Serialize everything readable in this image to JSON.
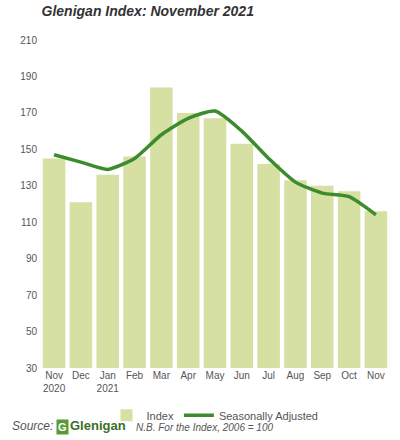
{
  "chart_data": {
    "type": "bar",
    "title": "Glenigan Index: November 2021",
    "categories": [
      "Nov 2020",
      "Dec",
      "Jan 2021",
      "Feb",
      "Mar",
      "Apr",
      "May",
      "Jun",
      "Jul",
      "Aug",
      "Sep",
      "Oct",
      "Nov"
    ],
    "series": [
      {
        "name": "Index",
        "type": "bar",
        "color": "#d5e0a2",
        "values": [
          145,
          121,
          136,
          146,
          184,
          170,
          167,
          153,
          142,
          133,
          130,
          127,
          116
        ]
      },
      {
        "name": "Seasonally Adjusted",
        "type": "line",
        "color": "#3c8c2e",
        "values": [
          147,
          143,
          139,
          145,
          158,
          167,
          171,
          160,
          145,
          132,
          126,
          124,
          114
        ]
      }
    ],
    "ylim": [
      30,
      210
    ],
    "yticks": [
      30,
      50,
      70,
      90,
      110,
      130,
      150,
      170,
      190,
      210
    ],
    "grid": false,
    "legend": "bottom",
    "annotations": [
      {
        "text": "Source:"
      },
      {
        "text": "G"
      },
      {
        "text": "Glenigan"
      },
      {
        "text": "N.B. For the Index, 2006 = 100"
      }
    ]
  }
}
